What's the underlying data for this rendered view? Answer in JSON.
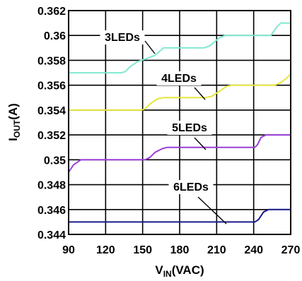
{
  "chart_data": {
    "type": "line",
    "xlabel": {
      "main": "V",
      "sub": "IN",
      "rest": "(VAC)"
    },
    "ylabel": {
      "main": "I",
      "sub": "OUT",
      "rest": "(A)"
    },
    "xlim": [
      90,
      270
    ],
    "ylim": [
      0.344,
      0.362
    ],
    "x_ticks": [
      "90",
      "120",
      "150",
      "180",
      "210",
      "240",
      "270"
    ],
    "y_ticks": [
      "0.344",
      "0.346",
      "0.348",
      "0.35",
      "0.352",
      "0.354",
      "0.356",
      "0.358",
      "0.36",
      "0.362"
    ],
    "grid": true,
    "series": [
      {
        "name": "3LEDs",
        "color": "#7fe8d0",
        "points": [
          [
            90,
            0.357
          ],
          [
            133,
            0.357
          ],
          [
            136,
            0.3571
          ],
          [
            140,
            0.3575
          ],
          [
            146,
            0.3579
          ],
          [
            152,
            0.3581
          ],
          [
            160,
            0.3584
          ],
          [
            167,
            0.359
          ],
          [
            200,
            0.359
          ],
          [
            205,
            0.3592
          ],
          [
            212,
            0.3598
          ],
          [
            217,
            0.36
          ],
          [
            254,
            0.36
          ],
          [
            258,
            0.3606
          ],
          [
            262,
            0.361
          ],
          [
            270,
            0.361
          ]
        ]
      },
      {
        "name": "4LEDs",
        "color": "#e6e63c",
        "points": [
          [
            90,
            0.354
          ],
          [
            149,
            0.354
          ],
          [
            152,
            0.3541
          ],
          [
            156,
            0.3545
          ],
          [
            162,
            0.3549
          ],
          [
            167,
            0.355
          ],
          [
            200,
            0.355
          ],
          [
            206,
            0.3551
          ],
          [
            212,
            0.3555
          ],
          [
            218,
            0.3559
          ],
          [
            222,
            0.356
          ],
          [
            257,
            0.356
          ],
          [
            262,
            0.3562
          ],
          [
            267,
            0.3566
          ],
          [
            270,
            0.3569
          ]
        ]
      },
      {
        "name": "5LEDs",
        "color": "#9b3fd8",
        "points": [
          [
            90,
            0.349
          ],
          [
            94,
            0.3496
          ],
          [
            100,
            0.35
          ],
          [
            152,
            0.35
          ],
          [
            156,
            0.3502
          ],
          [
            160,
            0.3506
          ],
          [
            166,
            0.3509
          ],
          [
            170,
            0.351
          ],
          [
            241,
            0.351
          ],
          [
            243,
            0.3512
          ],
          [
            246,
            0.3518
          ],
          [
            250,
            0.352
          ],
          [
            270,
            0.352
          ]
        ]
      },
      {
        "name": "6LEDs",
        "color": "#1a1a8c",
        "points": [
          [
            90,
            0.345
          ],
          [
            241,
            0.345
          ],
          [
            244,
            0.3452
          ],
          [
            248,
            0.3458
          ],
          [
            252,
            0.346
          ],
          [
            270,
            0.346
          ]
        ]
      }
    ],
    "annotations": [
      {
        "text": "3LEDs",
        "series": "3LEDs"
      },
      {
        "text": "4LEDs",
        "series": "4LEDs"
      },
      {
        "text": "5LEDs",
        "series": "5LEDs"
      },
      {
        "text": "6LEDs",
        "series": "6LEDs"
      }
    ]
  }
}
